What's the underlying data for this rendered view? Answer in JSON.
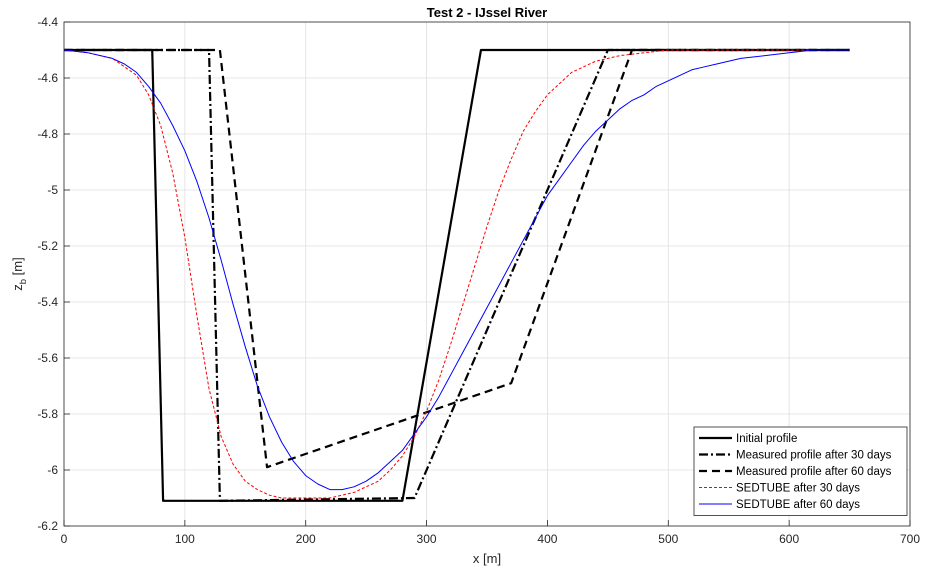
{
  "chart_data": {
    "type": "line",
    "title": "Test 2 - IJssel River",
    "xlabel": "x [m]",
    "ylabel_main": "z",
    "ylabel_sub": "b",
    "ylabel_unit": " [m]",
    "xlim": [
      0,
      700
    ],
    "ylim": [
      -6.2,
      -4.4
    ],
    "xticks": [
      0,
      100,
      200,
      300,
      400,
      500,
      600,
      700
    ],
    "yticks": [
      -6.2,
      -6,
      -5.8,
      -5.6,
      -5.4,
      -5.2,
      -5,
      -4.8,
      -4.6,
      -4.4
    ],
    "xtick_labels": [
      "0",
      "100",
      "200",
      "300",
      "400",
      "500",
      "600",
      "700"
    ],
    "ytick_labels": [
      "-6.2",
      "-6",
      "-5.8",
      "-5.6",
      "-5.4",
      "-5.2",
      "-5",
      "-4.8",
      "-4.6",
      "-4.4"
    ],
    "grid": true,
    "legend_position": "bottom-right",
    "series": [
      {
        "name": "Initial profile",
        "color": "#000000",
        "style": "solid",
        "width": 2.2,
        "x": [
          0,
          73,
          82,
          280,
          345,
          650
        ],
        "y": [
          -4.5,
          -4.5,
          -6.11,
          -6.11,
          -4.5,
          -4.5
        ]
      },
      {
        "name": "Measured profile after 30 days",
        "color": "#000000",
        "style": "dashdot",
        "width": 2.2,
        "x": [
          0,
          120,
          129,
          290,
          450,
          650
        ],
        "y": [
          -4.5,
          -4.5,
          -6.11,
          -6.1,
          -4.5,
          -4.5
        ]
      },
      {
        "name": "Measured profile after 60 days",
        "color": "#000000",
        "style": "dashed",
        "width": 2.2,
        "x": [
          0,
          129,
          168,
          370,
          470,
          650
        ],
        "y": [
          -4.5,
          -4.5,
          -5.99,
          -5.69,
          -4.5,
          -4.5
        ]
      },
      {
        "name": "SEDTUBE after 30 days",
        "color": "#ff0000",
        "style": "dotted",
        "width": 1,
        "x": [
          0,
          20,
          40,
          60,
          70,
          80,
          90,
          100,
          110,
          120,
          130,
          140,
          150,
          160,
          170,
          180,
          190,
          200,
          210,
          220,
          230,
          240,
          250,
          260,
          270,
          280,
          290,
          300,
          310,
          320,
          330,
          340,
          350,
          360,
          370,
          380,
          390,
          400,
          420,
          440,
          460,
          480,
          500,
          550,
          600,
          650
        ],
        "y": [
          -4.5,
          -4.51,
          -4.53,
          -4.59,
          -4.66,
          -4.77,
          -4.94,
          -5.17,
          -5.45,
          -5.71,
          -5.88,
          -5.98,
          -6.04,
          -6.07,
          -6.09,
          -6.1,
          -6.1,
          -6.1,
          -6.1,
          -6.1,
          -6.09,
          -6.08,
          -6.06,
          -6.04,
          -6.0,
          -5.95,
          -5.88,
          -5.79,
          -5.68,
          -5.55,
          -5.41,
          -5.27,
          -5.13,
          -5.0,
          -4.89,
          -4.79,
          -4.72,
          -4.66,
          -4.58,
          -4.54,
          -4.52,
          -4.51,
          -4.5,
          -4.5,
          -4.5,
          -4.5
        ]
      },
      {
        "name": "SEDTUBE after 60 days",
        "color": "#0000ff",
        "style": "solid",
        "width": 1,
        "x": [
          0,
          20,
          40,
          50,
          60,
          70,
          80,
          90,
          100,
          110,
          120,
          130,
          140,
          150,
          160,
          170,
          180,
          190,
          200,
          210,
          220,
          230,
          240,
          250,
          260,
          270,
          280,
          290,
          300,
          310,
          320,
          330,
          340,
          350,
          360,
          370,
          380,
          390,
          400,
          410,
          420,
          430,
          440,
          450,
          460,
          470,
          480,
          490,
          500,
          510,
          520,
          530,
          540,
          560,
          580,
          600,
          620,
          650
        ],
        "y": [
          -4.5,
          -4.51,
          -4.53,
          -4.55,
          -4.58,
          -4.63,
          -4.69,
          -4.77,
          -4.86,
          -4.97,
          -5.1,
          -5.25,
          -5.41,
          -5.56,
          -5.7,
          -5.81,
          -5.9,
          -5.97,
          -6.02,
          -6.05,
          -6.07,
          -6.07,
          -6.06,
          -6.04,
          -6.01,
          -5.97,
          -5.93,
          -5.87,
          -5.81,
          -5.74,
          -5.66,
          -5.58,
          -5.5,
          -5.42,
          -5.34,
          -5.26,
          -5.18,
          -5.1,
          -5.02,
          -4.96,
          -4.9,
          -4.84,
          -4.79,
          -4.75,
          -4.71,
          -4.68,
          -4.66,
          -4.63,
          -4.61,
          -4.59,
          -4.57,
          -4.56,
          -4.55,
          -4.53,
          -4.52,
          -4.51,
          -4.5,
          -4.5
        ]
      }
    ]
  }
}
